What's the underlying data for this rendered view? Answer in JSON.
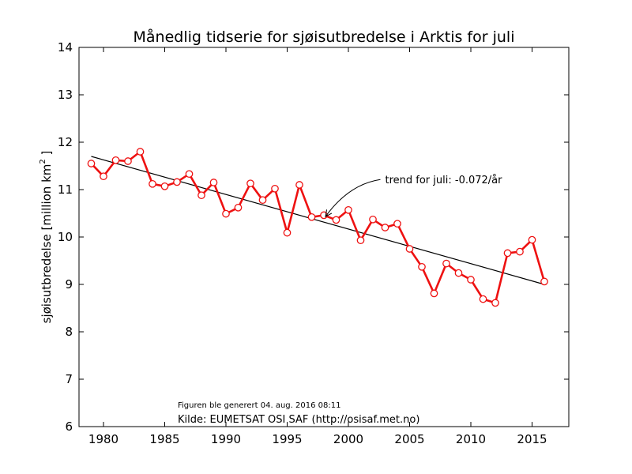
{
  "chart_data": {
    "type": "line",
    "title": "Månedlig tidserie for sjøisutbredelse i Arktis for juli",
    "ylabel_main": "sjøisutbredelse [million km",
    "ylabel_sup": "2",
    "ylabel_end": " ]",
    "xlabel": "",
    "xlim": [
      1978,
      2018
    ],
    "ylim": [
      6,
      14
    ],
    "xticks": [
      1980,
      1985,
      1990,
      1995,
      2000,
      2005,
      2010,
      2015
    ],
    "yticks": [
      6,
      7,
      8,
      9,
      10,
      11,
      12,
      13,
      14
    ],
    "grid": false,
    "line_color": "#ee1111",
    "trend_color": "#000000",
    "series": [
      {
        "x": [
          1979,
          1980,
          1981,
          1982,
          1983,
          1984,
          1985,
          1986,
          1987,
          1988,
          1989,
          1990,
          1991,
          1992,
          1993,
          1994,
          1995,
          1996,
          1997,
          1998,
          1999,
          2000,
          2001,
          2002,
          2003,
          2004,
          2005,
          2006,
          2007,
          2008,
          2009,
          2010,
          2011,
          2012,
          2013,
          2014,
          2015,
          2016
        ],
        "values": [
          11.55,
          11.28,
          11.62,
          11.6,
          11.8,
          11.12,
          11.07,
          11.16,
          11.33,
          10.88,
          11.15,
          10.49,
          10.62,
          11.13,
          10.78,
          11.02,
          10.09,
          11.1,
          10.42,
          10.46,
          10.36,
          10.57,
          9.93,
          10.37,
          10.2,
          10.28,
          9.75,
          9.37,
          8.81,
          9.44,
          9.24,
          9.1,
          8.69,
          8.61,
          9.66,
          9.69,
          9.94,
          9.06
        ]
      }
    ],
    "trend": {
      "x": [
        1979,
        2016
      ],
      "values": [
        11.7,
        9.0
      ]
    },
    "annotation": {
      "text": "trend for juli: -0.072/år",
      "point": [
        1998,
        10.38
      ],
      "text_pos": [
        2003,
        11.13
      ]
    },
    "footnote": "Figuren ble generert 04. aug. 2016 08:11",
    "source": "Kilde: EUMETSAT OSI SAF (http://osisaf.met.no)"
  }
}
